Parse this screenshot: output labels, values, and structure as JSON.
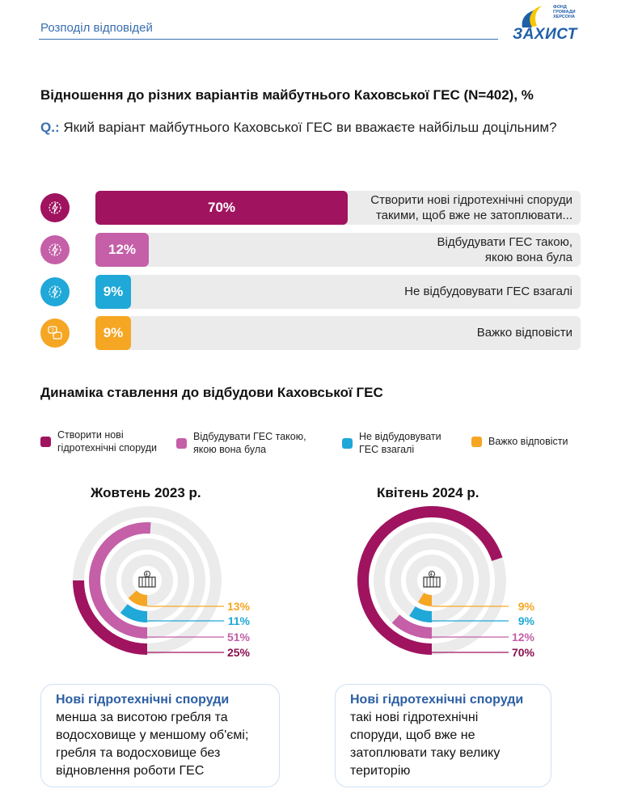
{
  "header": {
    "title": "Розподіл відповідей"
  },
  "logo": {
    "name": "ЗАХИСТ",
    "small": "ФОНД ГРОМАДИ ХЕРСОНА"
  },
  "section1": {
    "title": "Відношення до різних варіантів майбутнього Каховської ГЕС (N=402), %",
    "q_label": "Q.:",
    "question": "Який варіант майбутнього Каховської ГЕС ви вважаєте найбільш доцільним?"
  },
  "section2": {
    "title": "Динаміка ставлення до відбудови Каховської ГЕС"
  },
  "colors": {
    "purple": "#a0135f",
    "pink": "#c45fa8",
    "blue": "#1fa8d8",
    "orange": "#f5a623",
    "track": "#ebebeb",
    "accent": "#3a6fb0"
  },
  "chart_data": [
    {
      "type": "bar",
      "orientation": "horizontal",
      "title": "Відношення до різних варіантів майбутнього Каховської ГЕС (N=402), %",
      "categories": [
        "Створити нові гідротехнічні споруди такими, щоб вже не затоплювати...",
        "Відбудувати ГЕС такою, якою вона була",
        "Не відбудовувати ГЕС взагалі",
        "Важко відповісти"
      ],
      "values": [
        70,
        12,
        9,
        9
      ],
      "value_labels": [
        "70%",
        "12%",
        "9%",
        "9%"
      ],
      "label_lines": [
        [
          "Створити нові гідротехнічні споруди",
          "такими, щоб вже не затоплювати..."
        ],
        [
          "Відбудувати ГЕС такою,",
          "якою вона була"
        ],
        [
          "Не відбудовувати ГЕС взагалі"
        ],
        [
          "Важко відповісти"
        ]
      ],
      "colors": [
        "#a0135f",
        "#c45fa8",
        "#1fa8d8",
        "#f5a623"
      ],
      "icons": [
        "lightning-gear-icon",
        "lightning-gear-icon",
        "lightning-gear-icon",
        "speech-bubbles-icon"
      ],
      "xlim": [
        0,
        100
      ]
    },
    {
      "type": "radial-bar",
      "title": "Жовтень 2023 р.",
      "series": [
        {
          "name": "Важко відповісти",
          "value": 13,
          "label": "13%",
          "color": "#f5a623"
        },
        {
          "name": "Не відбудовувати ГЕС взагалі",
          "value": 11,
          "label": "11%",
          "color": "#1fa8d8"
        },
        {
          "name": "Відбудувати ГЕС такою, якою вона була",
          "value": 51,
          "label": "51%",
          "color": "#c45fa8"
        },
        {
          "name": "Створити нові гідротехнічні споруди",
          "value": 25,
          "label": "25%",
          "color": "#a0135f"
        }
      ],
      "range": [
        0,
        100
      ]
    },
    {
      "type": "radial-bar",
      "title": "Квітень 2024 р.",
      "series": [
        {
          "name": "Важко відповісти",
          "value": 9,
          "label": "9%",
          "color": "#f5a623"
        },
        {
          "name": "Не відбудовувати ГЕС взагалі",
          "value": 9,
          "label": "9%",
          "color": "#1fa8d8"
        },
        {
          "name": "Відбудувати ГЕС такою, якою вона була",
          "value": 12,
          "label": "12%",
          "color": "#c45fa8"
        },
        {
          "name": "Створити нові гідротехнічні споруди",
          "value": 70,
          "label": "70%",
          "color": "#a0135f"
        }
      ],
      "range": [
        0,
        100
      ]
    }
  ],
  "legend": [
    {
      "lines": [
        "Створити нові",
        "гідротехнічні споруди"
      ],
      "color": "#a0135f"
    },
    {
      "lines": [
        "Відбудувати ГЕС такою,",
        "якою вона була"
      ],
      "color": "#c45fa8"
    },
    {
      "lines": [
        "Не відбудовувати",
        "ГЕС взагалі"
      ],
      "color": "#1fa8d8"
    },
    {
      "lines": [
        "Важко відповісти"
      ],
      "color": "#f5a623"
    }
  ],
  "notes": [
    {
      "title": "Нові гідротехнічні споруди",
      "lines": [
        "менша за висотою гребля та",
        "водосховище у меншому об'ємі;",
        "гребля та водосховище без",
        "відновлення роботи ГЕС"
      ]
    },
    {
      "title": "Нові гідротехнічні споруди",
      "lines": [
        "такі нові гідротехнічні",
        "споруди, щоб вже не",
        "затоплювати таку велику",
        "територію"
      ]
    }
  ]
}
